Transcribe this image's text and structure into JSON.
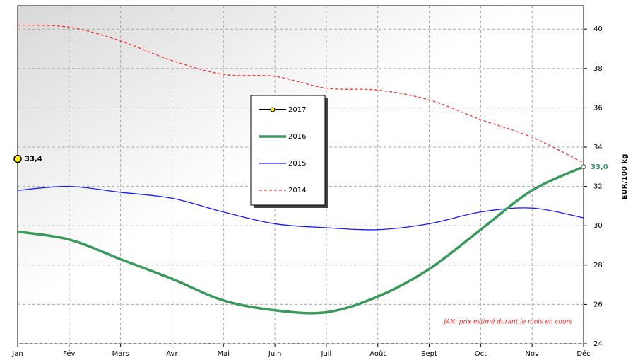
{
  "chart_data": {
    "type": "line",
    "categories": [
      "Jan",
      "Fév",
      "Mars",
      "Avr",
      "Mai",
      "Juin",
      "Juil",
      "Août",
      "Sept",
      "Oct",
      "Nov",
      "Déc"
    ],
    "series": [
      {
        "name": "2017",
        "color": "#000000",
        "marker_color": "#ffee00",
        "width": 2,
        "values": [
          33.4,
          null,
          null,
          null,
          null,
          null,
          null,
          null,
          null,
          null,
          null,
          null
        ],
        "value_labels": [
          "33,4",
          null,
          null,
          null,
          null,
          null,
          null,
          null,
          null,
          null,
          null,
          null
        ],
        "label_color": "#000000"
      },
      {
        "name": "2016",
        "color": "#3a9a5c",
        "width": 3.5,
        "values": [
          29.7,
          29.3,
          28.3,
          27.3,
          26.2,
          25.7,
          25.6,
          26.4,
          27.8,
          29.8,
          31.8,
          33.0
        ],
        "value_labels": [
          null,
          null,
          null,
          null,
          null,
          null,
          null,
          null,
          null,
          null,
          null,
          "33,0"
        ],
        "label_color": "#3a9a5c"
      },
      {
        "name": "2015",
        "color": "#1a1aff",
        "width": 1.3,
        "values": [
          31.8,
          32.0,
          31.7,
          31.4,
          30.7,
          30.1,
          29.9,
          29.8,
          30.1,
          30.7,
          30.9,
          30.4
        ]
      },
      {
        "name": "2014",
        "color": "#ff3030",
        "width": 1.3,
        "dashed": true,
        "values": [
          40.2,
          40.1,
          39.4,
          38.4,
          37.7,
          37.6,
          37.0,
          36.9,
          36.4,
          35.4,
          34.5,
          33.2
        ]
      }
    ],
    "y_label": "EUR/100 kg",
    "annotation": "JAN: prix estimé durant le mois en cours",
    "ylim": [
      24,
      41
    ],
    "yticks": [
      24,
      26,
      28,
      30,
      32,
      34,
      36,
      38,
      40
    ],
    "grid": true
  }
}
